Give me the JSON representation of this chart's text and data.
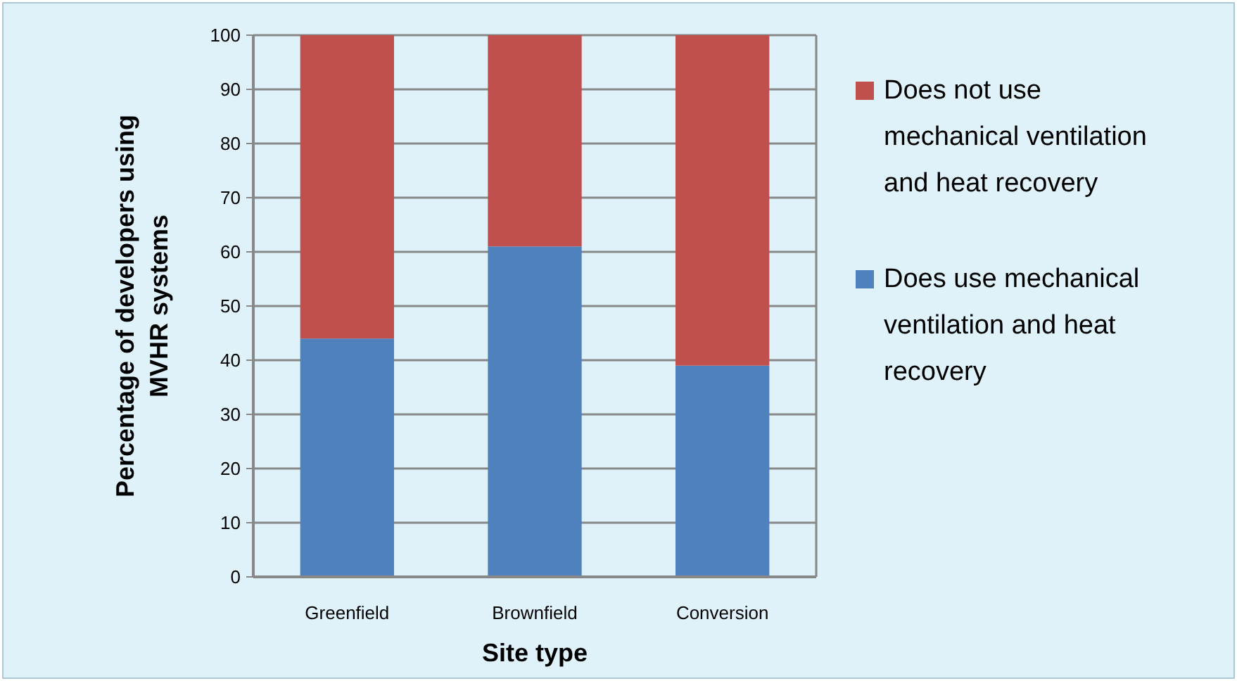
{
  "chart_data": {
    "type": "bar",
    "stacked": true,
    "xlabel": "Site type",
    "ylabel": "Percentage of developers using MVHR systems",
    "categories": [
      "Greenfield",
      "Brownfield",
      "Conversion"
    ],
    "series": [
      {
        "name": "Does use mechanical ventilation and heat recovery",
        "color": "#4f81bd",
        "values": [
          44,
          61,
          39
        ]
      },
      {
        "name": "Does not use mechanical ventilation and heat recovery",
        "color": "#c0504d",
        "values": [
          56,
          39,
          61
        ]
      }
    ],
    "ylim": [
      0,
      100
    ],
    "yticks": [
      0,
      10,
      20,
      30,
      40,
      50,
      60,
      70,
      80,
      90,
      100
    ],
    "grid": "y",
    "legend": "right"
  }
}
